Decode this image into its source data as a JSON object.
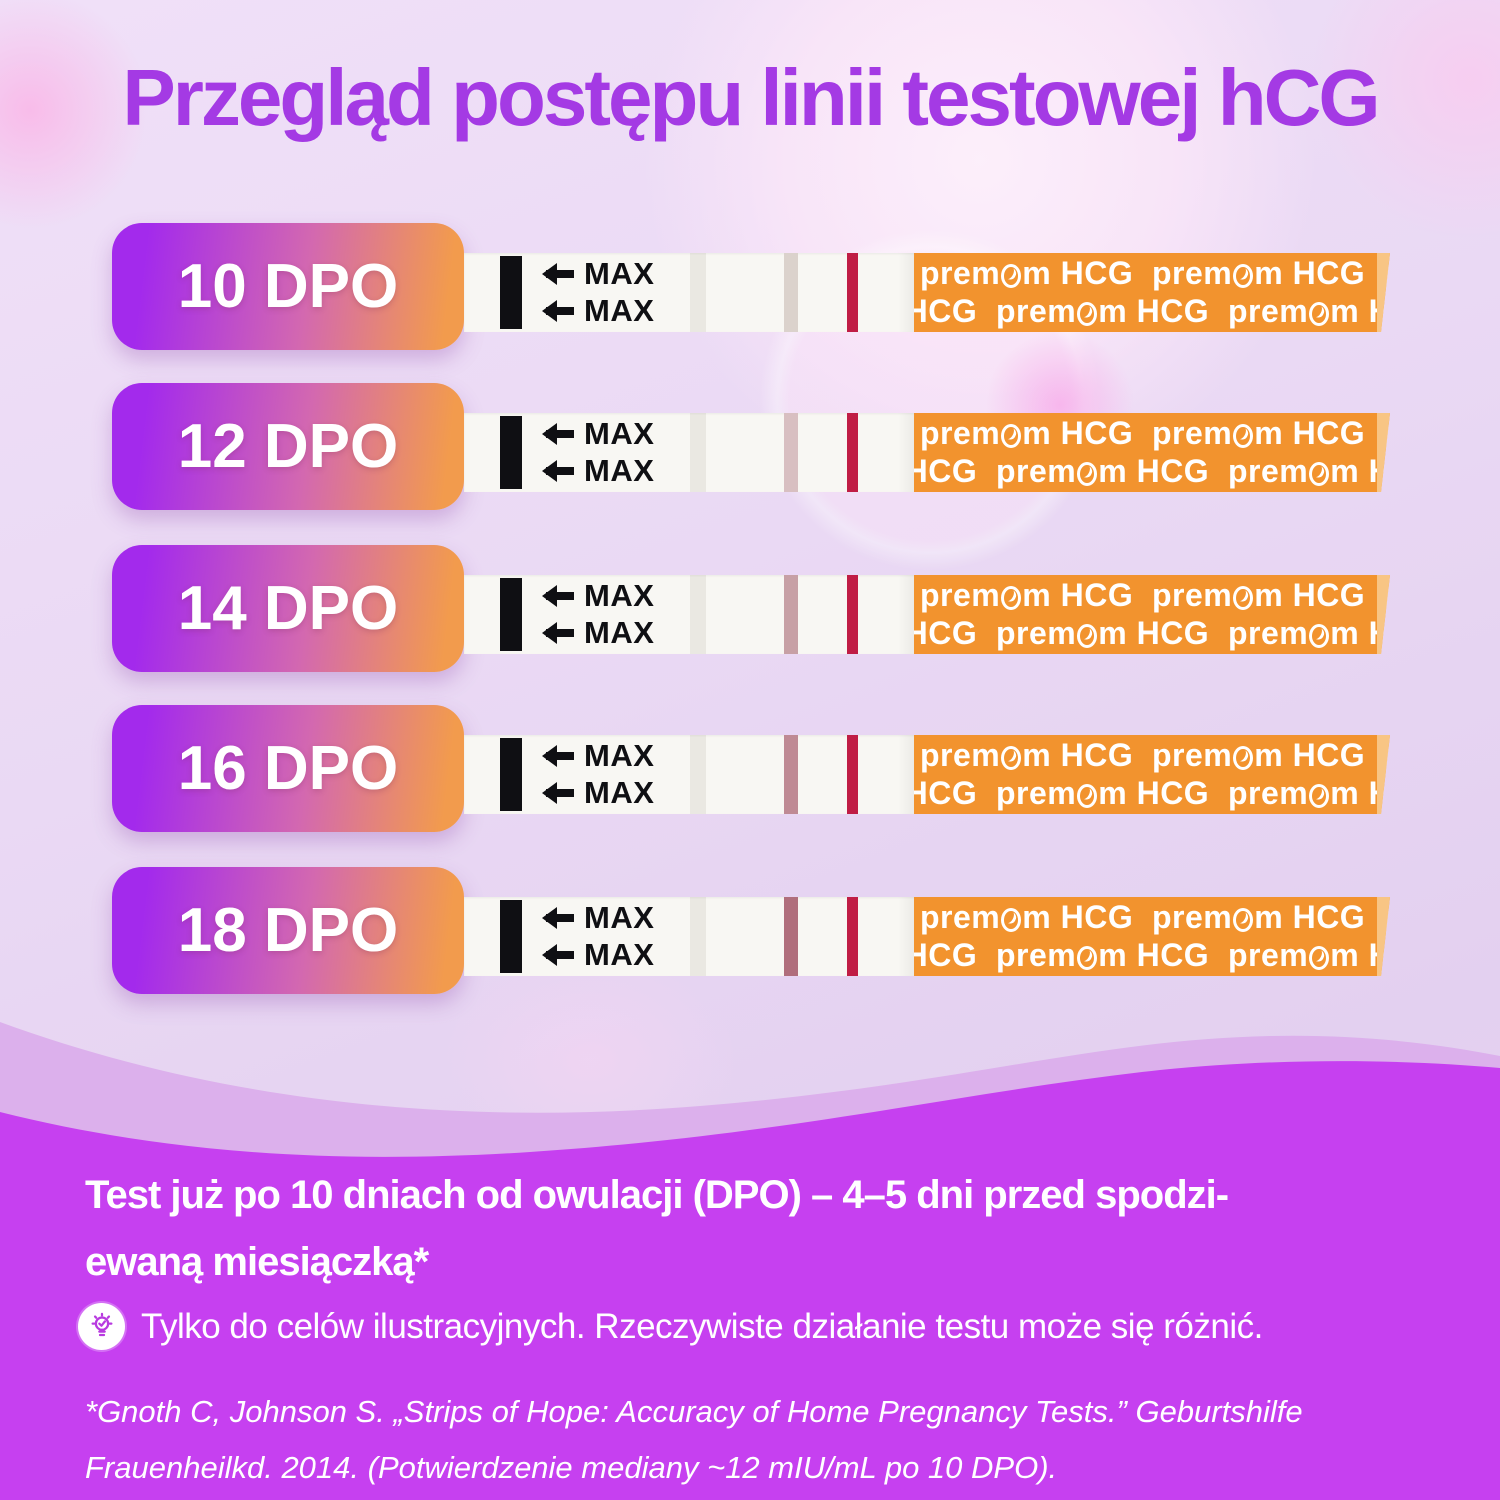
{
  "title": "Przegląd postępu linii testowej hCG",
  "rows": [
    {
      "label": "10 DPO",
      "test_line_color": "#dbd2cc"
    },
    {
      "label": "12 DPO",
      "test_line_color": "#d8bfc1"
    },
    {
      "label": "14 DPO",
      "test_line_color": "#c7a0a5"
    },
    {
      "label": "16 DPO",
      "test_line_color": "#bf8a94"
    },
    {
      "label": "18 DPO",
      "test_line_color": "#b06e7c"
    }
  ],
  "strip": {
    "max_label": "MAX",
    "brand_prefix": "prem",
    "brand_suffix": "m",
    "brand_hcg": "HCG",
    "control_line_color": "#c01d45",
    "tape_color": "#f2932e"
  },
  "footer": {
    "headline_line1": "Test już po 10 dniach od owulacji (DPO) – 4–5 dni przed spodzi-",
    "headline_line2": "ewaną miesiączką*",
    "note": "Tylko do celów ilustracyjnych. Rzeczywiste działanie testu może się różnić.",
    "citation_line1": "*Gnoth C, Johnson S. „Strips of Hope: Accuracy of Home Pregnancy Tests.” Geburtshilfe",
    "citation_line2": "Frauenheilkd. 2014. (Potwierdzenie mediany ~12 mIU/mL po 10 DPO)."
  },
  "colors": {
    "title": "#a43ae4",
    "badge_gradient_start": "#a32aec",
    "badge_gradient_mid": "#d368b0",
    "badge_gradient_end": "#f29b4d",
    "background_light": "#ead9f4",
    "bottom_purple": "#c640f0",
    "wave_mid": "#dcb0ec",
    "tape_orange": "#f2932e",
    "control_line": "#c01d45"
  }
}
